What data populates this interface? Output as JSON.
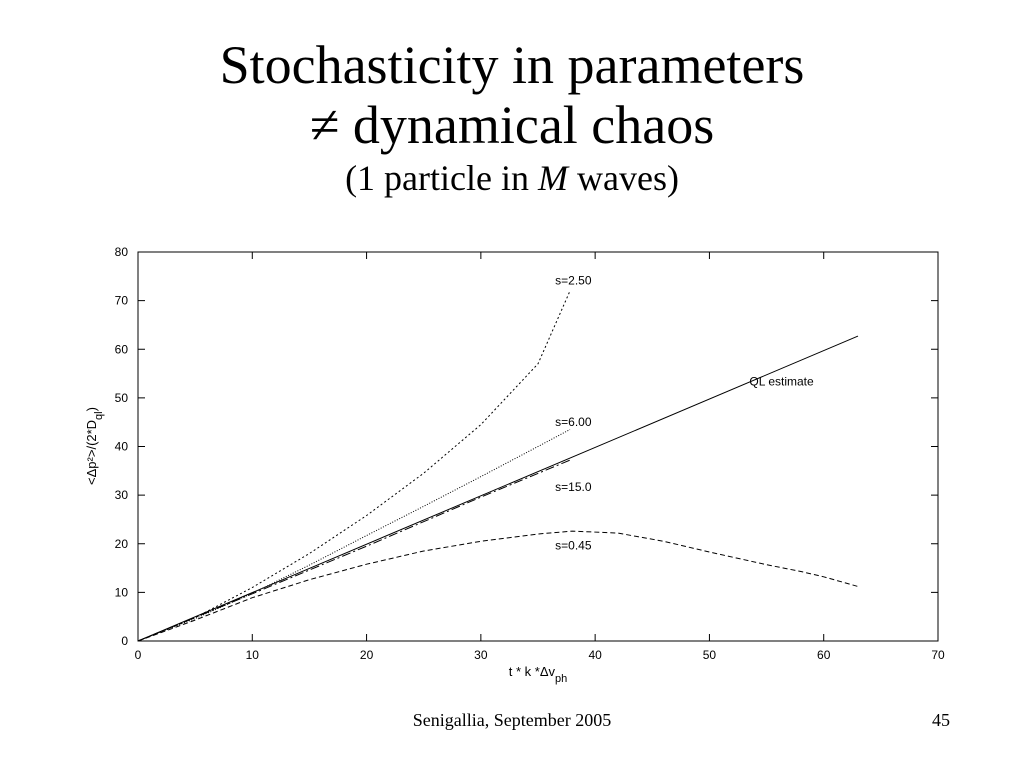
{
  "slide": {
    "title_line1": "Stochasticity in parameters",
    "title_line2": "≠ dynamical chaos",
    "subtitle_pre": "(1 particle in ",
    "subtitle_var": "M",
    "subtitle_post": " waves)",
    "footer_text": "Senigallia, September 2005",
    "page_number": "45"
  },
  "chart_data": {
    "type": "line",
    "title": "",
    "xlabel": "t * k *Δv",
    "xlabel_sub": "ph",
    "ylabel": "<Δp²>/(2*D",
    "ylabel_sub": "ql",
    "ylabel_post": ")",
    "xlim": [
      0,
      70
    ],
    "ylim": [
      0,
      80
    ],
    "x_ticks": [
      0,
      10,
      20,
      30,
      40,
      50,
      60,
      70
    ],
    "y_ticks": [
      0,
      10,
      20,
      30,
      40,
      50,
      60,
      70,
      80
    ],
    "grid": false,
    "series": [
      {
        "name": "QL estimate",
        "style": "solid",
        "points": [
          [
            0,
            0
          ],
          [
            63,
            62.7
          ]
        ]
      },
      {
        "name": "s=2.50",
        "style": "dotted",
        "points": [
          [
            0,
            0
          ],
          [
            5,
            4.8
          ],
          [
            10,
            11
          ],
          [
            15,
            18
          ],
          [
            20,
            25.8
          ],
          [
            25,
            34.5
          ],
          [
            30,
            44.5
          ],
          [
            35,
            57
          ],
          [
            37.8,
            72
          ]
        ]
      },
      {
        "name": "s=6.00",
        "style": "dotted-fine",
        "points": [
          [
            0,
            0
          ],
          [
            5,
            4.6
          ],
          [
            10,
            9.8
          ],
          [
            15,
            15.6
          ],
          [
            20,
            21.7
          ],
          [
            25,
            27.7
          ],
          [
            30,
            33.8
          ],
          [
            35,
            40
          ],
          [
            37.8,
            43.5
          ]
        ]
      },
      {
        "name": "s=15.0",
        "style": "dashdot",
        "points": [
          [
            0,
            0
          ],
          [
            10,
            9.7
          ],
          [
            20,
            19.5
          ],
          [
            30,
            29.6
          ],
          [
            37.8,
            37.2
          ]
        ]
      },
      {
        "name": "s=0.45",
        "style": "dashed",
        "points": [
          [
            0,
            0
          ],
          [
            5,
            4.3
          ],
          [
            10,
            8.9
          ],
          [
            15,
            12.6
          ],
          [
            20,
            15.8
          ],
          [
            25,
            18.5
          ],
          [
            30,
            20.5
          ],
          [
            35,
            22
          ],
          [
            38,
            22.6
          ],
          [
            42,
            22.2
          ],
          [
            46,
            20.5
          ],
          [
            50,
            18.3
          ],
          [
            55,
            15.7
          ],
          [
            58,
            14.3
          ],
          [
            60,
            13.2
          ],
          [
            63,
            11.2
          ]
        ]
      }
    ],
    "annotations": [
      {
        "text": "s=2.50",
        "x": 36.5,
        "y": 73.3
      },
      {
        "text": "s=6.00",
        "x": 36.5,
        "y": 44.2
      },
      {
        "text": "s=15.0",
        "x": 36.5,
        "y": 30.8
      },
      {
        "text": "s=0.45",
        "x": 36.5,
        "y": 18.8
      },
      {
        "text": "QL estimate",
        "x": 53.5,
        "y": 52.5
      }
    ]
  }
}
